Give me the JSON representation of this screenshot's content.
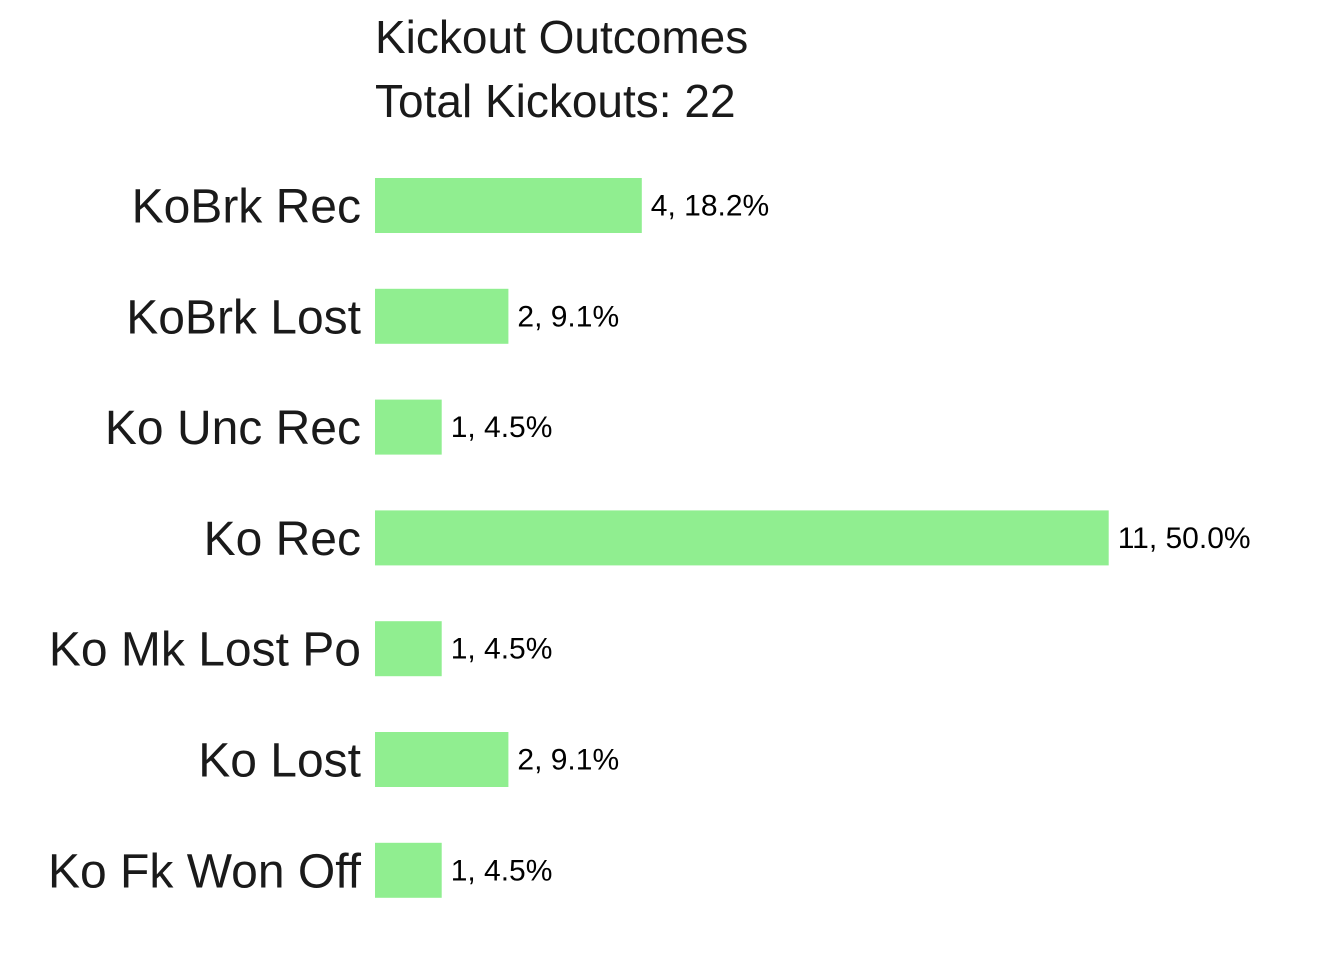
{
  "chart_data": {
    "type": "bar",
    "orientation": "horizontal",
    "title": "Kickout Outcomes",
    "subtitle": "Total Kickouts: 22",
    "categories": [
      "KoBrk Rec",
      "KoBrk Lost",
      "Ko Unc Rec",
      "Ko Rec",
      "Ko Mk Lost Po",
      "Ko Lost",
      "Ko Fk Won Off"
    ],
    "values": [
      4,
      2,
      1,
      11,
      1,
      2,
      1
    ],
    "data_labels": [
      "4, 18.2%",
      "2, 9.1%",
      "1, 4.5%",
      "11, 50.0%",
      "1, 4.5%",
      "2, 9.1%",
      "1, 4.5%"
    ],
    "xlim": [
      0,
      11
    ],
    "grid": false,
    "legend": "none",
    "bar_color": "#90ee90"
  }
}
